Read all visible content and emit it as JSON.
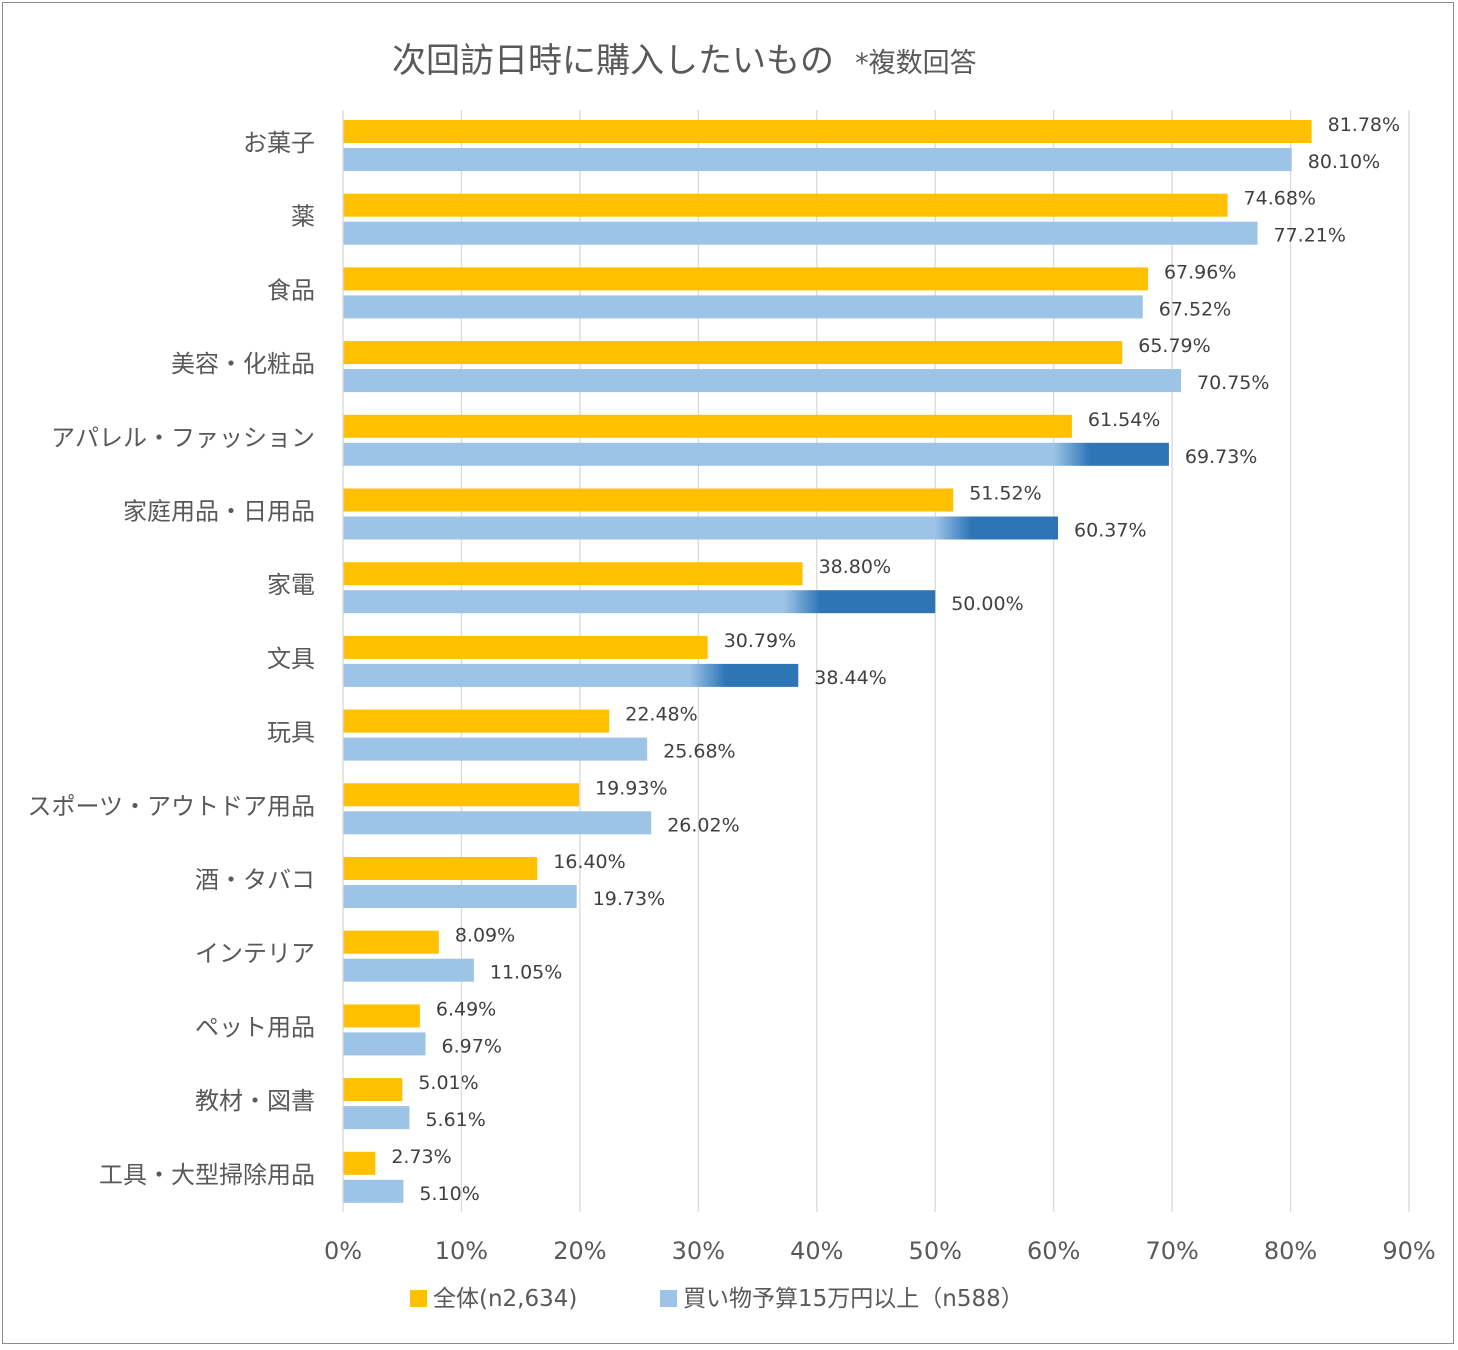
{
  "chart_data": {
    "type": "bar",
    "orientation": "horizontal",
    "title": "次回訪日時に購入したいもの",
    "subtitle": "*複数回答",
    "categories": [
      "お菓子",
      "薬",
      "食品",
      "美容・化粧品",
      "アパレル・ファッション",
      "家庭用品・日用品",
      "家電",
      "文具",
      "玩具",
      "スポーツ・アウトドア用品",
      "酒・タバコ",
      "インテリア",
      "ペット用品",
      "教材・図書",
      "工具・大型掃除用品"
    ],
    "series": [
      {
        "name": "全体(n2,634)",
        "color": "#FFC000",
        "values": [
          81.78,
          74.68,
          67.96,
          65.79,
          61.54,
          51.52,
          38.8,
          30.79,
          22.48,
          19.93,
          16.4,
          8.09,
          6.49,
          5.01,
          2.73
        ],
        "labels": [
          "81.78%",
          "74.68%",
          "67.96%",
          "65.79%",
          "61.54%",
          "51.52%",
          "38.80%",
          "30.79%",
          "22.48%",
          "19.93%",
          "16.40%",
          "8.09%",
          "6.49%",
          "5.01%",
          "2.73%"
        ]
      },
      {
        "name": "買い物予算15万円以上（n588）",
        "color": "#9DC3E6",
        "highlight_color": "#2E75B6",
        "highlight_from": [
          null,
          null,
          null,
          null,
          61.54,
          51.52,
          38.8,
          30.79,
          null,
          null,
          null,
          null,
          null,
          null,
          null
        ],
        "values": [
          80.1,
          77.21,
          67.52,
          70.75,
          69.73,
          60.37,
          50.0,
          38.44,
          25.68,
          26.02,
          19.73,
          11.05,
          6.97,
          5.61,
          5.1
        ],
        "labels": [
          "80.10%",
          "77.21%",
          "67.52%",
          "70.75%",
          "69.73%",
          "60.37%",
          "50.00%",
          "38.44%",
          "25.68%",
          "26.02%",
          "19.73%",
          "11.05%",
          "6.97%",
          "5.61%",
          "5.10%"
        ]
      }
    ],
    "xlim": [
      0,
      90
    ],
    "xticks": [
      0,
      10,
      20,
      30,
      40,
      50,
      60,
      70,
      80,
      90
    ],
    "xtick_labels": [
      "0%",
      "10%",
      "20%",
      "30%",
      "40%",
      "50%",
      "60%",
      "70%",
      "80%",
      "90%"
    ],
    "grid": true,
    "legend_position": "bottom"
  }
}
